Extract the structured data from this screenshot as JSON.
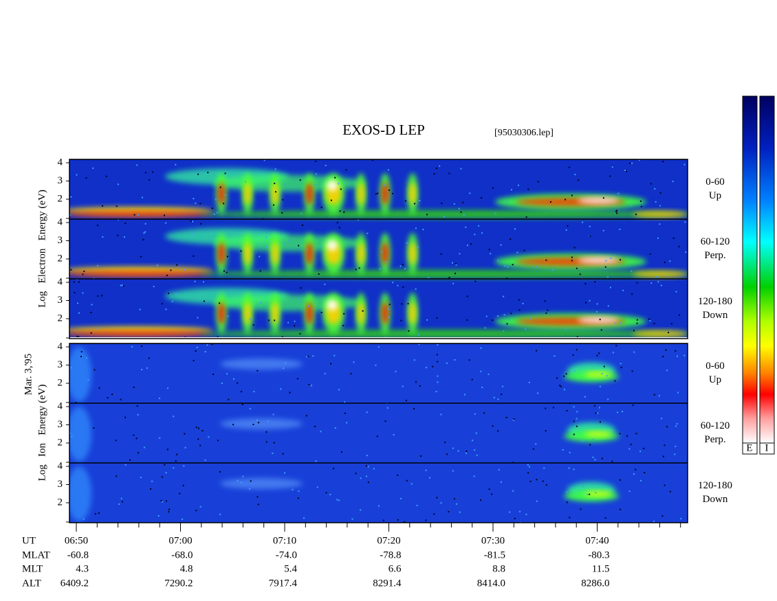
{
  "title": "EXOS-D LEP",
  "file": "[95030306.lep]",
  "date_label": "Mar. 3,'95",
  "electron": {
    "ylabel": "Log   Electron   Energy (eV)",
    "panels": [
      {
        "pitch": "0-60",
        "dir": "Up"
      },
      {
        "pitch": "60-120",
        "dir": "Perp."
      },
      {
        "pitch": "120-180",
        "dir": "Down"
      }
    ]
  },
  "ion": {
    "ylabel": "Log   Ion   Energy (eV)",
    "panels": [
      {
        "pitch": "0-60",
        "dir": "Up"
      },
      {
        "pitch": "60-120",
        "dir": "Perp."
      },
      {
        "pitch": "120-180",
        "dir": "Down"
      }
    ]
  },
  "yticks": [
    4,
    3,
    2
  ],
  "colorbar": [
    "E",
    "I"
  ],
  "footer": {
    "labels": [
      "UT",
      "MLAT",
      "MLT",
      "ALT"
    ],
    "columns": [
      [
        "06:50",
        "-60.8",
        "4.3",
        "6409.2"
      ],
      [
        "07:00",
        "-68.0",
        "4.8",
        "7290.2"
      ],
      [
        "07:10",
        "-74.0",
        "5.4",
        "7917.4"
      ],
      [
        "07:20",
        "-78.8",
        "6.6",
        "8291.4"
      ],
      [
        "07:30",
        "-81.5",
        "8.8",
        "8414.0"
      ],
      [
        "07:40",
        "-80.3",
        "11.5",
        "8286.0"
      ]
    ]
  }
}
